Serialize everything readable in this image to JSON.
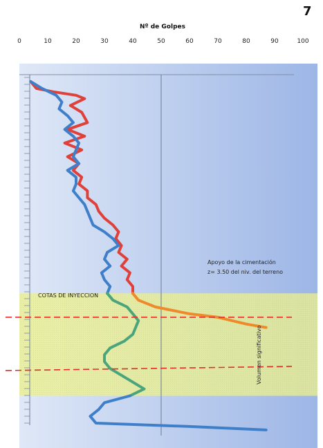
{
  "page": {
    "number": "7"
  },
  "chart_data": {
    "type": "line",
    "xlabel": "Nº de Golpes",
    "xlim": [
      0,
      100
    ],
    "xticks": [
      "0",
      "10",
      "20",
      "30",
      "40",
      "50",
      "60",
      "70",
      "80",
      "90",
      "100"
    ],
    "depth_range": [
      0,
      100
    ],
    "reference_line_x": 50,
    "zone_band": [
      62,
      92
    ],
    "injection_levels": [
      69,
      84
    ],
    "series": [
      {
        "color": "#e0403a",
        "points": [
          [
            4,
            0
          ],
          [
            6,
            2
          ],
          [
            12,
            3
          ],
          [
            20,
            4
          ],
          [
            23,
            5
          ],
          [
            18,
            7
          ],
          [
            22,
            9
          ],
          [
            24,
            12
          ],
          [
            17,
            14
          ],
          [
            23,
            16
          ],
          [
            16,
            18
          ],
          [
            22,
            20
          ],
          [
            17,
            22
          ],
          [
            21,
            24
          ],
          [
            19,
            26
          ],
          [
            22,
            28
          ],
          [
            21,
            30
          ],
          [
            24,
            32
          ],
          [
            24,
            34
          ],
          [
            27,
            36
          ],
          [
            28,
            38
          ],
          [
            30,
            40
          ],
          [
            33,
            42
          ],
          [
            35,
            44
          ],
          [
            34,
            46
          ],
          [
            36,
            48
          ],
          [
            35,
            50
          ],
          [
            38,
            52
          ],
          [
            36,
            54
          ],
          [
            39,
            56
          ],
          [
            38,
            58
          ],
          [
            40,
            60
          ],
          [
            40,
            62
          ]
        ]
      },
      {
        "color": "#3f7fc9",
        "points": [
          [
            4,
            0
          ],
          [
            8,
            2
          ],
          [
            13,
            4
          ],
          [
            15,
            6
          ],
          [
            14,
            8
          ],
          [
            17,
            10
          ],
          [
            19,
            12
          ],
          [
            16,
            14
          ],
          [
            19,
            16
          ],
          [
            21,
            18
          ],
          [
            20,
            20
          ],
          [
            19,
            22
          ],
          [
            21,
            24
          ],
          [
            17,
            26
          ],
          [
            20,
            28
          ],
          [
            20,
            30
          ],
          [
            19,
            32
          ],
          [
            21,
            34
          ],
          [
            23,
            36
          ],
          [
            24,
            38
          ],
          [
            25,
            40
          ],
          [
            26,
            42
          ],
          [
            30,
            44
          ],
          [
            33,
            46
          ],
          [
            35,
            48
          ],
          [
            31,
            50
          ],
          [
            30,
            52
          ],
          [
            32,
            54
          ],
          [
            29,
            56
          ],
          [
            30,
            58
          ],
          [
            32,
            60
          ],
          [
            31,
            62
          ]
        ]
      },
      {
        "color": "#ee8a2c",
        "points": [
          [
            40,
            62
          ],
          [
            42,
            64
          ],
          [
            48,
            66
          ],
          [
            60,
            68
          ],
          [
            70,
            69
          ],
          [
            80,
            71
          ],
          [
            87,
            72
          ]
        ]
      },
      {
        "color": "#4aa57c",
        "points": [
          [
            31,
            62
          ],
          [
            33,
            64
          ],
          [
            38,
            66
          ],
          [
            40,
            68
          ],
          [
            42,
            70
          ],
          [
            41,
            72
          ],
          [
            40,
            74
          ],
          [
            37,
            76
          ],
          [
            32,
            78
          ],
          [
            30,
            80
          ],
          [
            30,
            82
          ],
          [
            32,
            84
          ],
          [
            36,
            86
          ],
          [
            40,
            88
          ],
          [
            44,
            90
          ],
          [
            39,
            92
          ]
        ]
      },
      {
        "color": "#3f7fc9",
        "points": [
          [
            39,
            92
          ],
          [
            30,
            94
          ],
          [
            28,
            96
          ],
          [
            25,
            98
          ],
          [
            27,
            100
          ],
          [
            60,
            101
          ],
          [
            87,
            102
          ]
        ]
      }
    ]
  },
  "annotations": {
    "apoyo_line1": "Apoyo de la cimentación",
    "apoyo_line2": "z= 3.50 del niv. del terreno",
    "cotas": "COTAS DE INYECCION",
    "volumen": "Volumen significativo"
  }
}
